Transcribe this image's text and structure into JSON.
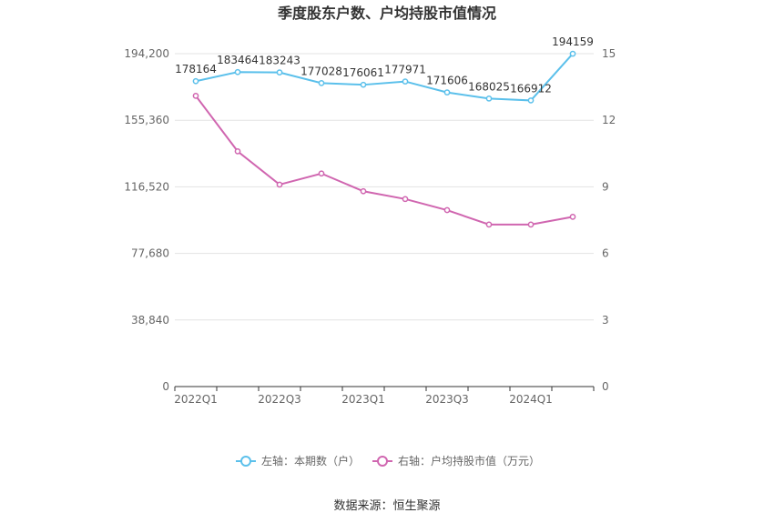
{
  "chart_data": {
    "type": "line",
    "title": "季度股东户数、户均持股市值情况",
    "categories": [
      "2022Q1",
      "2022Q2",
      "2022Q3",
      "2022Q4",
      "2023Q1",
      "2023Q2",
      "2023Q3",
      "2023Q4",
      "2024Q1",
      "2024Q2"
    ],
    "x_tick_labels": [
      "2022Q1",
      "2022Q3",
      "2023Q1",
      "2023Q3",
      "2024Q1"
    ],
    "left_axis": {
      "min": 0,
      "max": 194200,
      "ticks": [
        "0",
        "38,840",
        "77,680",
        "116,520",
        "155,360",
        "194,200"
      ]
    },
    "right_axis": {
      "min": 0,
      "max": 15,
      "ticks": [
        "0",
        "3",
        "6",
        "9",
        "12",
        "15"
      ]
    },
    "series": [
      {
        "name": "左轴：本期数（户）",
        "axis": "left",
        "color": "#5bc0eb",
        "values": [
          178164,
          183464,
          183243,
          177028,
          176061,
          177971,
          171606,
          168025,
          166912,
          194159
        ],
        "labels": [
          "178164",
          "183464",
          "183243",
          "177028",
          "176061",
          "177971",
          "171606",
          "168025",
          "166912",
          "194159"
        ]
      },
      {
        "name": "右轴：户均持股市值（万元）",
        "axis": "right",
        "color": "#d066b0",
        "values": [
          13.1,
          10.6,
          9.1,
          9.6,
          8.8,
          8.45,
          7.95,
          7.3,
          7.3,
          7.65
        ]
      }
    ],
    "grid": true,
    "legend_position": "bottom"
  },
  "source_text": "数据来源：恒生聚源"
}
